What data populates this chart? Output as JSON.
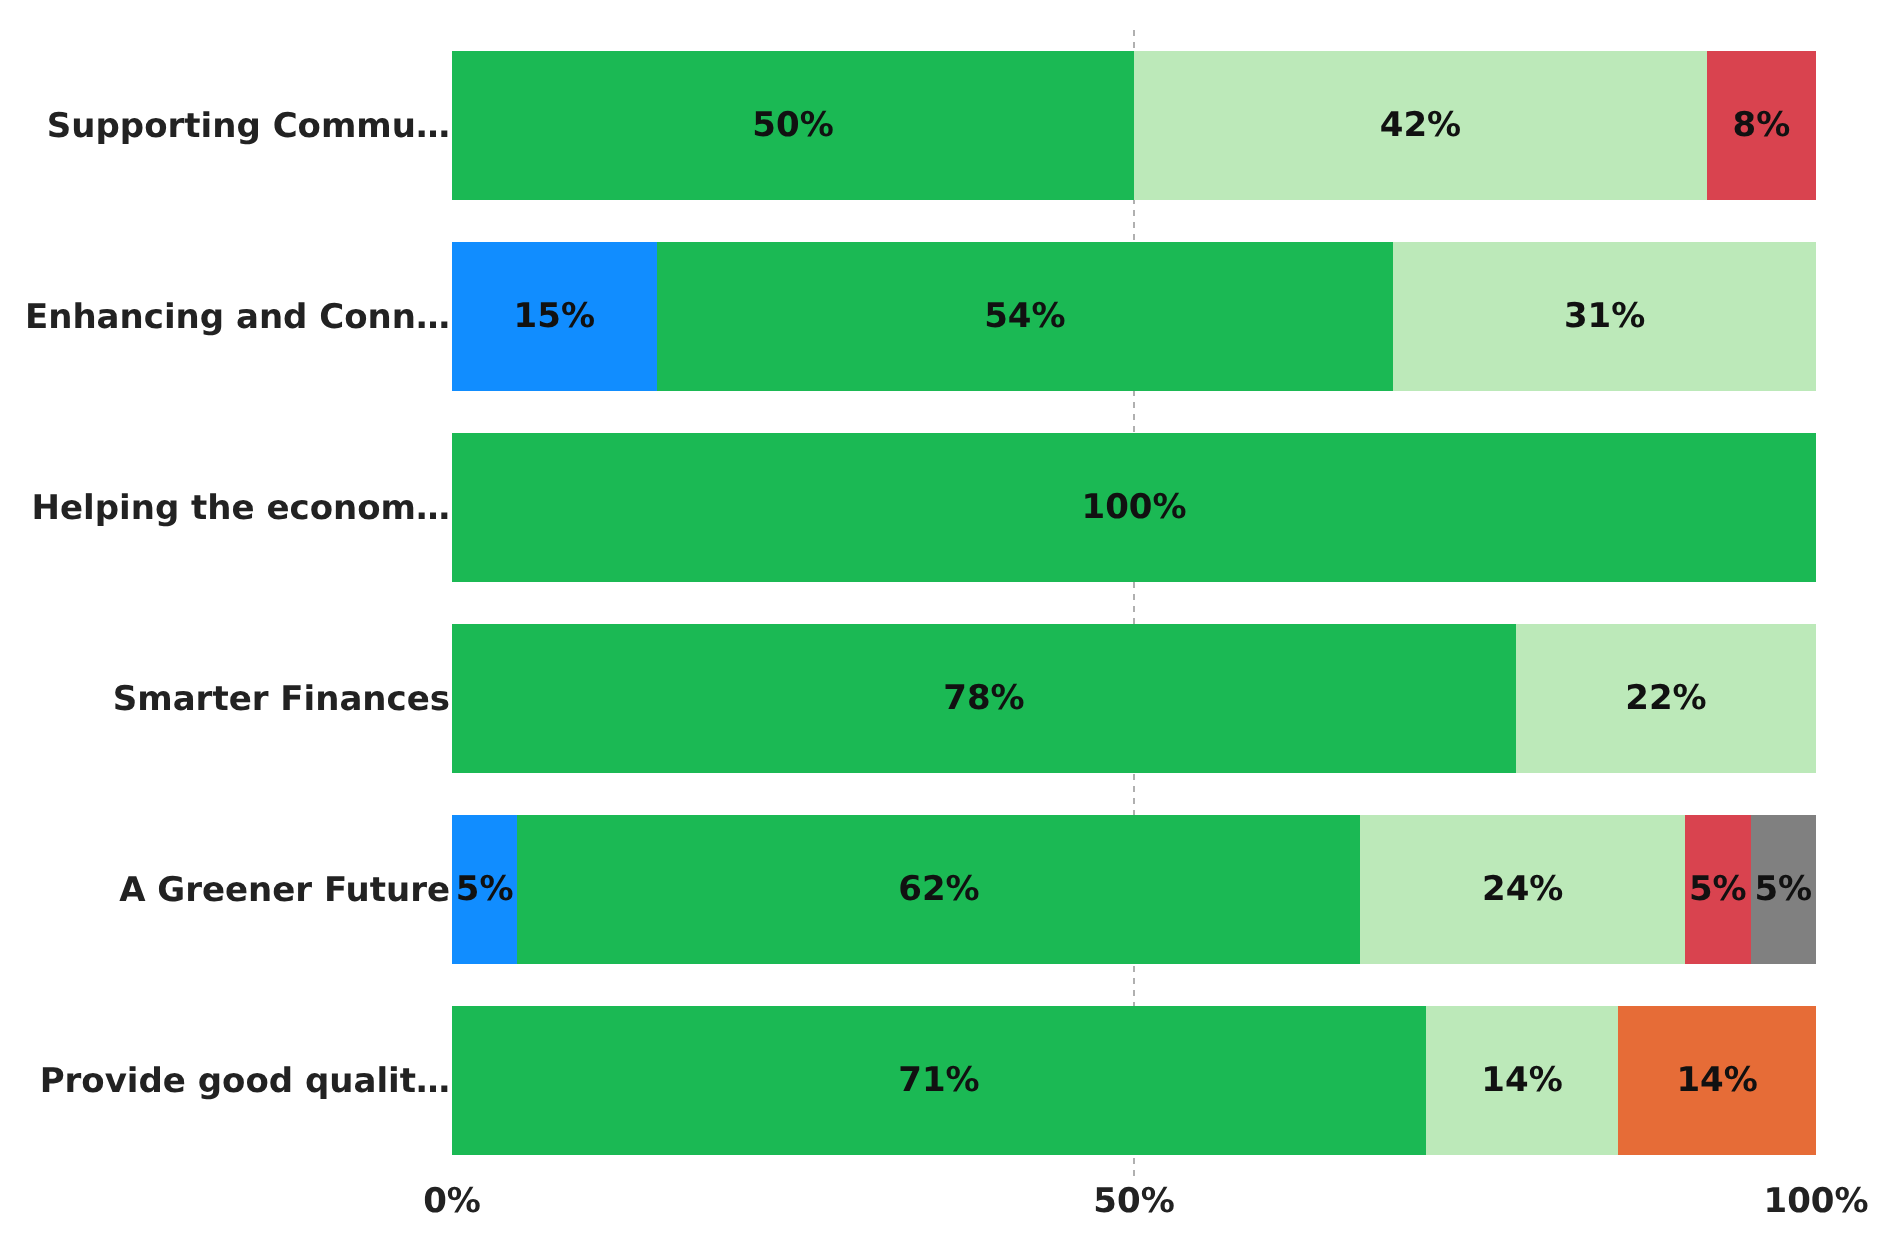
{
  "chart_data": {
    "type": "bar",
    "orientation": "horizontal",
    "stacked": true,
    "grid": "x",
    "categories": [
      "Supporting Commu…",
      "Enhancing and Conn…",
      "Helping the econom…",
      "Smarter Finances",
      "A Greener Future",
      "Provide good qualit…"
    ],
    "series": [
      {
        "color": "#118dff",
        "values": [
          null,
          15,
          null,
          null,
          4.8,
          null
        ],
        "value_labels": [
          null,
          "15%",
          null,
          null,
          "5%",
          null
        ]
      },
      {
        "color": "#1bb954",
        "values": [
          50,
          54,
          100,
          78,
          61.8,
          71.4
        ],
        "value_labels": [
          "50%",
          "54%",
          "100%",
          "78%",
          "62%",
          "71%"
        ]
      },
      {
        "color": "#bce9b9",
        "values": [
          42,
          31,
          null,
          22,
          23.8,
          14.1
        ],
        "value_labels": [
          "42%",
          "31%",
          null,
          "22%",
          "24%",
          "14%"
        ]
      },
      {
        "color": "#d9434f",
        "values": [
          8,
          null,
          null,
          null,
          4.8,
          null
        ],
        "value_labels": [
          "8%",
          null,
          null,
          null,
          "5%",
          null
        ]
      },
      {
        "color": "#808080",
        "values": [
          null,
          null,
          null,
          null,
          4.8,
          null
        ],
        "value_labels": [
          null,
          null,
          null,
          null,
          "5%",
          null
        ]
      },
      {
        "color": "#e66c37",
        "values": [
          null,
          null,
          null,
          null,
          null,
          14.5
        ],
        "value_labels": [
          null,
          null,
          null,
          null,
          null,
          "14%"
        ]
      }
    ],
    "xlim": [
      0,
      100
    ],
    "xticks": [
      {
        "value": 0,
        "label": "0%"
      },
      {
        "value": 50,
        "label": "50%"
      },
      {
        "value": 100,
        "label": "100%"
      }
    ]
  }
}
